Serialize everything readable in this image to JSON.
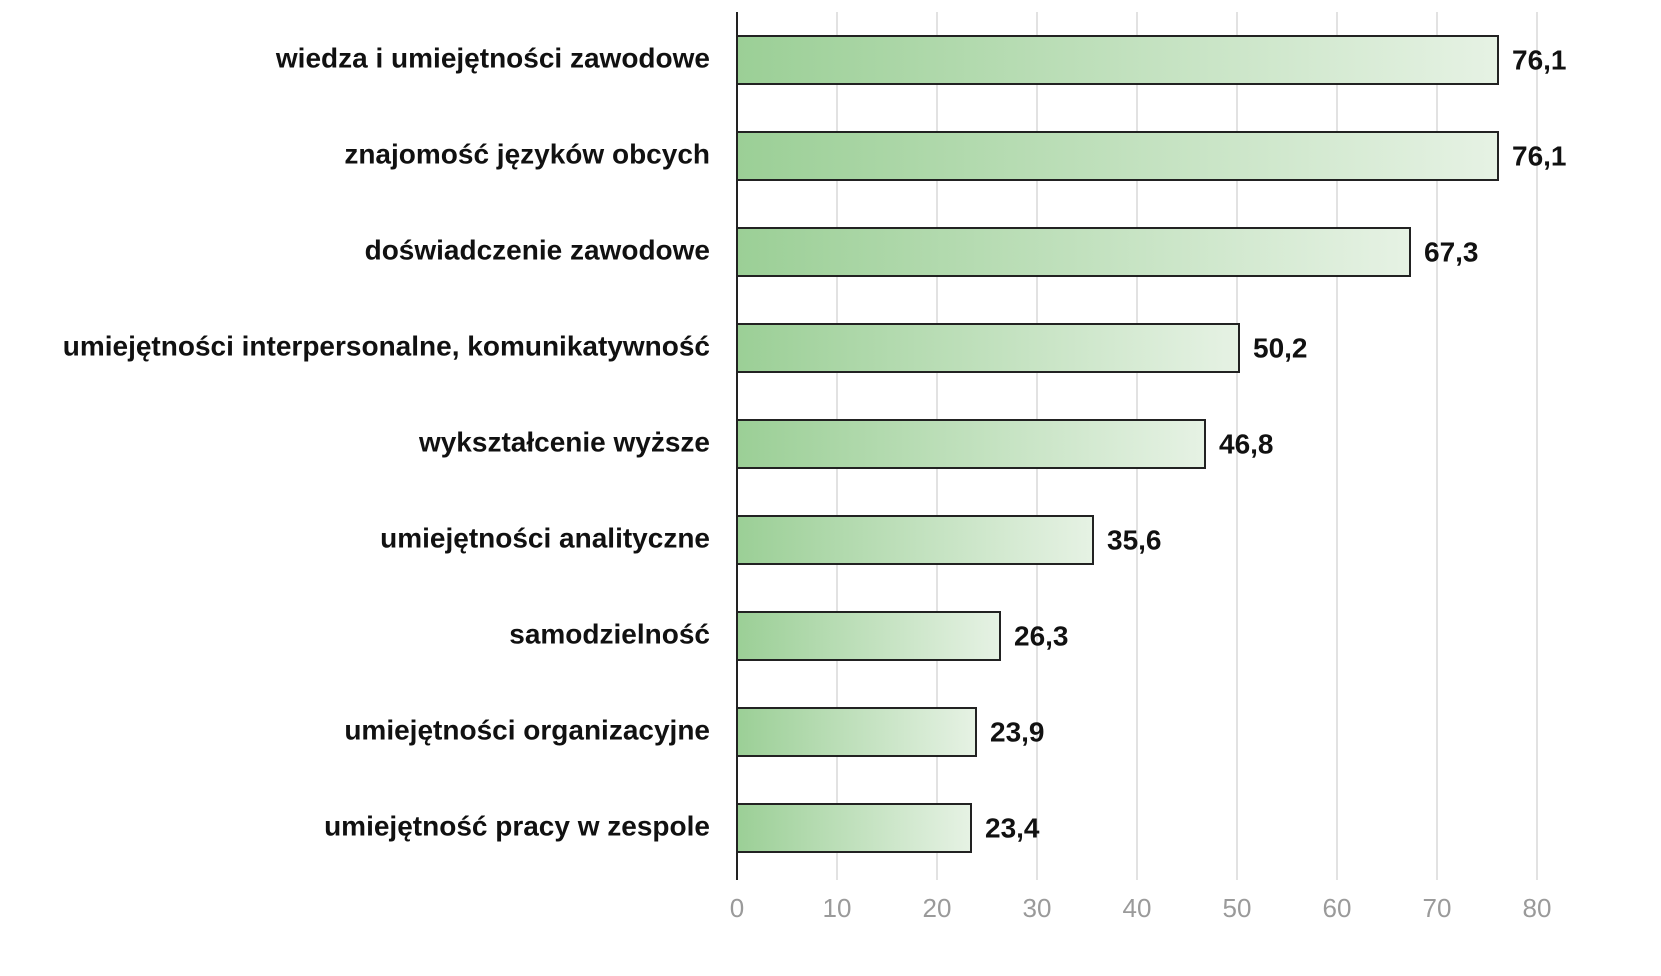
{
  "chart_data": {
    "type": "bar",
    "orientation": "horizontal",
    "categories": [
      "wiedza i umiejętności zawodowe",
      "znajomość języków obcych",
      "doświadczenie zawodowe",
      "umiejętności interpersonalne, komunikatywność",
      "wykształcenie wyższe",
      "umiejętności analityczne",
      "samodzielność",
      "umiejętności organizacyjne",
      "umiejętność pracy w zespole"
    ],
    "values": [
      76.1,
      76.1,
      67.3,
      50.2,
      46.8,
      35.6,
      26.3,
      23.9,
      23.4
    ],
    "value_labels": [
      "76,1",
      "76,1",
      "67,3",
      "50,2",
      "46,8",
      "35,6",
      "26,3",
      "23,9",
      "23,4"
    ],
    "gradient": [
      "#9bcf96",
      "#e6f2e4"
    ],
    "xlim": [
      0,
      80
    ],
    "xticks": [
      0,
      10,
      20,
      30,
      40,
      50,
      60,
      70,
      80
    ],
    "grid": true
  }
}
